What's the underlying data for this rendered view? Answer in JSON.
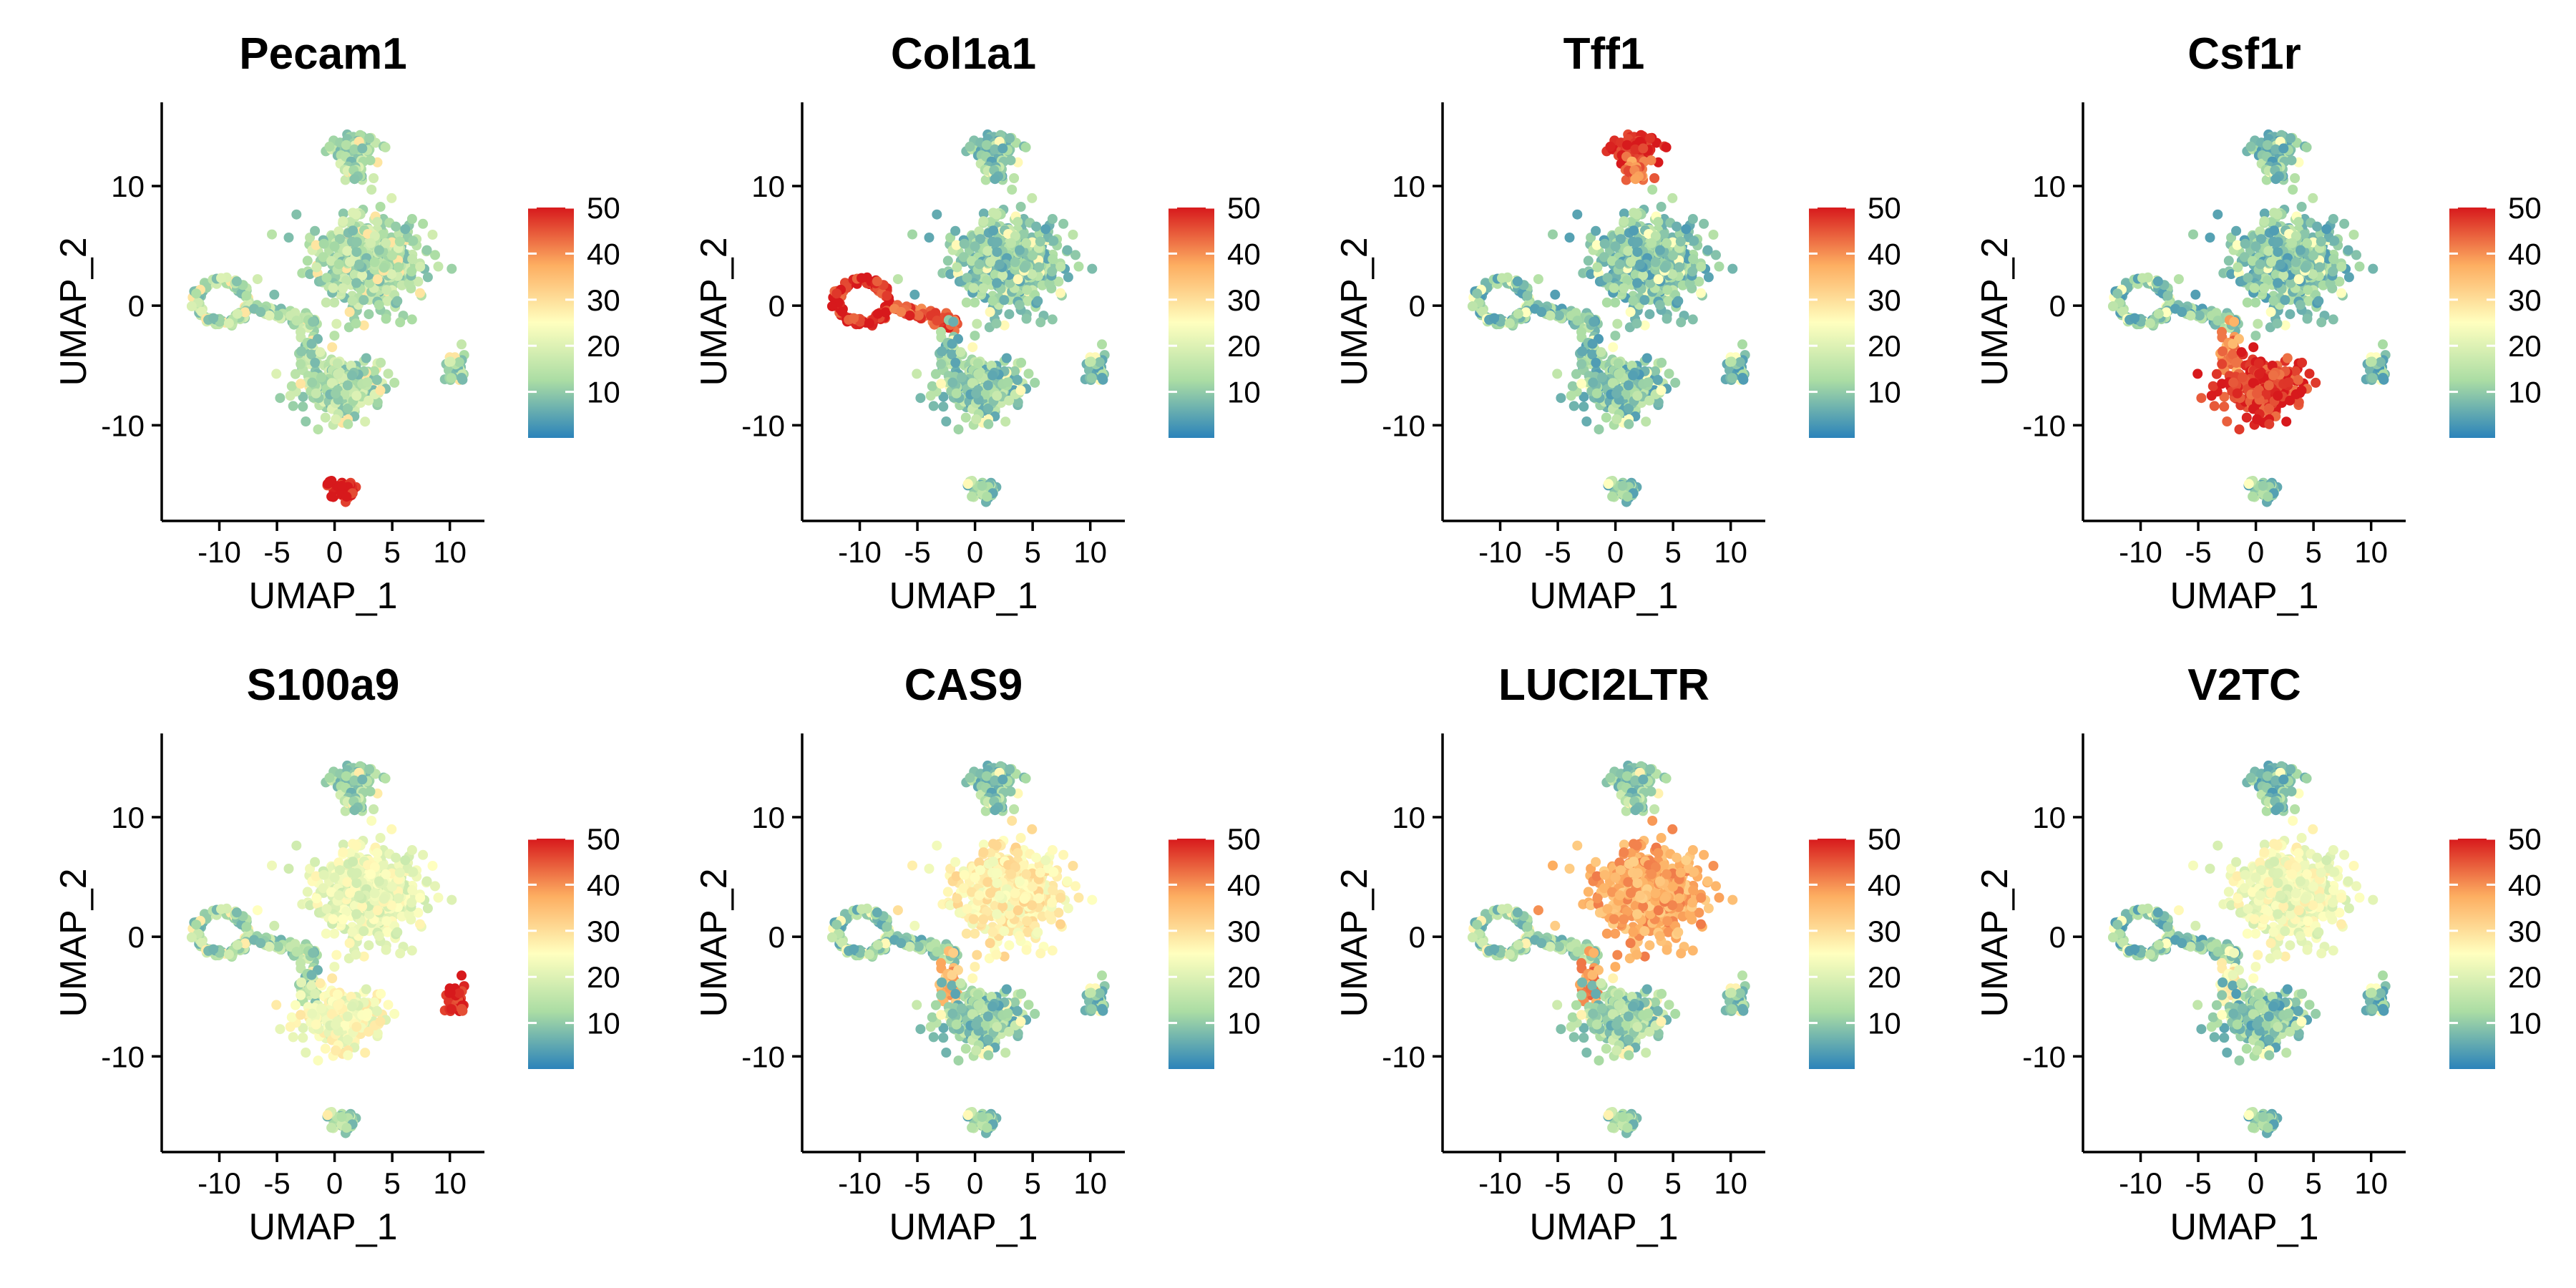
{
  "chart_data": {
    "type": "scatter",
    "description": "",
    "xlabel": "UMAP_1",
    "ylabel": "UMAP_2",
    "xlim": [
      -15,
      13
    ],
    "ylim": [
      -18,
      17
    ],
    "xticks": [
      -10,
      -5,
      0,
      5,
      10
    ],
    "xtick_labels": [
      "-10",
      "-5",
      "0",
      "5",
      "10"
    ],
    "yticks": [
      -10,
      0,
      10
    ],
    "ytick_labels": [
      "-10",
      "0",
      "10"
    ],
    "colorbar": {
      "min": 0,
      "max": 50,
      "ticks": [
        10,
        20,
        30,
        40,
        50
      ],
      "tick_labels": [
        "10",
        "20",
        "30",
        "40",
        "50"
      ],
      "colors": [
        "#2b83ba",
        "#abdda4",
        "#ffffbf",
        "#fdae61",
        "#d7191c"
      ]
    },
    "clusters": [
      {
        "id": "top",
        "cx": 1.5,
        "cy": 13.2,
        "sx": 2.0,
        "sy": 1.0
      },
      {
        "id": "top-mid",
        "cx": 1.8,
        "cy": 11.2,
        "sx": 1.0,
        "sy": 0.9
      },
      {
        "id": "main",
        "cx": 2.6,
        "cy": 3.8,
        "sx": 4.2,
        "sy": 3.4
      },
      {
        "id": "left-ring",
        "cx": -9.8,
        "cy": 0.3,
        "sx": 2.4,
        "sy": 1.9
      },
      {
        "id": "bridge",
        "cx": -4.6,
        "cy": -0.8,
        "sx": 2.6,
        "sy": 0.6
      },
      {
        "id": "stem",
        "cx": -2.3,
        "cy": -3.8,
        "sx": 0.7,
        "sy": 1.8
      },
      {
        "id": "lower",
        "cx": 0.8,
        "cy": -6.8,
        "sx": 3.2,
        "sy": 2.2
      },
      {
        "id": "right",
        "cx": 10.5,
        "cy": -5.3,
        "sx": 0.7,
        "sy": 1.1
      },
      {
        "id": "bottom",
        "cx": 0.6,
        "cy": -15.4,
        "sx": 1.2,
        "sy": 0.7
      }
    ],
    "panels": [
      {
        "title": "Pecam1",
        "base": 14,
        "high": {
          "bottom": 50
        }
      },
      {
        "title": "Col1a1",
        "base": 11,
        "high": {
          "left-ring": 48,
          "bridge": 45
        }
      },
      {
        "title": "Tff1",
        "base": 10,
        "high": {
          "top": 50,
          "top-mid": 42
        }
      },
      {
        "title": "Csf1r",
        "base": 10,
        "high": {
          "lower": 47,
          "stem": 40
        }
      },
      {
        "title": "S100a9",
        "base": 13,
        "high": {
          "right": 50,
          "lower": 24,
          "main": 22
        }
      },
      {
        "title": "CAS9",
        "base": 11,
        "high": {
          "main": 27,
          "stem": 36
        }
      },
      {
        "title": "LUCI2LTR",
        "base": 12,
        "high": {
          "main": 37,
          "stem": 40
        }
      },
      {
        "title": "V2TC",
        "base": 10,
        "high": {
          "main": 23,
          "stem": 26
        }
      }
    ]
  }
}
